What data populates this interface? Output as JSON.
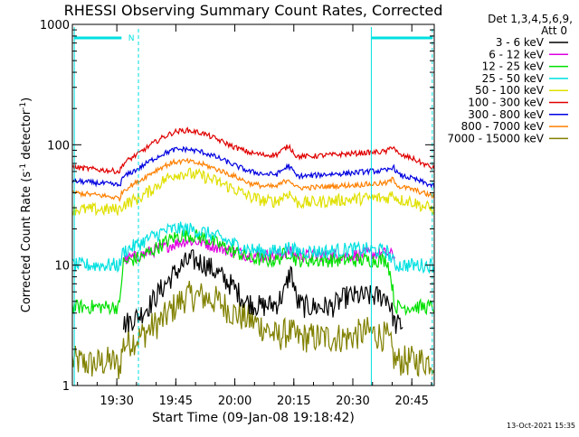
{
  "chart_data": {
    "type": "line",
    "title": "RHESSI Observing Summary Count Rates, Corrected",
    "xlabel": "Start Time (09-Jan-08 19:18:42)",
    "ylabel_main": "Corrected Count Rate (s",
    "ylabel_sup1": "-1",
    "ylabel_mid": " detector",
    "ylabel_sup2": "-1",
    "ylabel_end": ")",
    "y_scale": "log",
    "ylim": [
      1,
      1000
    ],
    "xlim_minutes": [
      0,
      92
    ],
    "x_ticks": [
      {
        "minute": 11.3,
        "label": "19:30"
      },
      {
        "minute": 26.3,
        "label": "19:45"
      },
      {
        "minute": 41.3,
        "label": "20:00"
      },
      {
        "minute": 56.3,
        "label": "20:15"
      },
      {
        "minute": 71.3,
        "label": "20:30"
      },
      {
        "minute": 86.3,
        "label": "20:45"
      }
    ],
    "y_ticks": [
      {
        "value": 1,
        "label": "1"
      },
      {
        "value": 10,
        "label": "10"
      },
      {
        "value": 100,
        "label": "100"
      },
      {
        "value": 1000,
        "label": "1000"
      }
    ],
    "legend_header": [
      "Det 1,3,4,5,6,9,",
      "Att 0"
    ],
    "legend_position": "right",
    "night_marker": "N",
    "timestamp": "13-Oct-2021 15:35",
    "series": [
      {
        "name": "3 - 6 keV",
        "color": "#000000",
        "x": [
          13,
          17,
          20,
          23,
          26,
          28,
          30,
          33,
          36,
          40,
          44,
          48,
          52,
          54,
          55.5,
          57,
          59,
          62,
          66,
          70,
          75,
          80,
          82,
          84
        ],
        "y": [
          3.2,
          3.8,
          4.8,
          6.5,
          8.5,
          10,
          11,
          10.5,
          9,
          7,
          5,
          4.5,
          4.8,
          6,
          9,
          5,
          4.5,
          4.5,
          4.5,
          5.5,
          5.5,
          5.5,
          3.2,
          3.2
        ]
      },
      {
        "name": "6 - 12 keV",
        "color": "#e000e0",
        "x": [
          13,
          17,
          20,
          23,
          26,
          29,
          33,
          37,
          41,
          45,
          49,
          52,
          55,
          57,
          60,
          65,
          70,
          75,
          80,
          82
        ],
        "y": [
          11,
          12,
          13,
          14,
          15,
          16,
          15.5,
          14,
          13,
          12,
          12,
          12,
          13,
          12,
          12,
          12,
          12,
          12.5,
          12.5,
          12
        ]
      },
      {
        "name": "12 - 25 keV",
        "color": "#00e000",
        "x": [
          0,
          7,
          12,
          13,
          17,
          20,
          23,
          26,
          29,
          33,
          37,
          41,
          45,
          49,
          52,
          55,
          57,
          60,
          65,
          70,
          75,
          80,
          82,
          88,
          92
        ],
        "y": [
          4.5,
          4.5,
          4.5,
          10.5,
          11.5,
          13,
          15,
          17,
          18,
          17,
          15,
          13,
          11.5,
          11,
          11,
          13,
          11,
          11,
          11,
          11,
          11,
          11,
          4.5,
          4.5,
          4.5
        ]
      },
      {
        "name": "25 - 50 keV",
        "color": "#00e0e0",
        "x": [
          0,
          7,
          12,
          13,
          17,
          20,
          23,
          26,
          29,
          33,
          37,
          41,
          45,
          49,
          52,
          55,
          57,
          60,
          65,
          70,
          75,
          80,
          82,
          88,
          92
        ],
        "y": [
          10,
          10,
          10,
          13,
          15,
          17,
          19,
          20,
          20,
          19,
          17,
          15,
          13.5,
          13,
          13,
          14,
          13,
          13,
          13,
          13.5,
          13.5,
          13,
          10,
          10,
          10
        ]
      },
      {
        "name": "50 - 100 keV",
        "color": "#e0e000",
        "x": [
          0,
          7,
          12,
          13,
          17,
          20,
          23,
          26,
          29,
          33,
          37,
          41,
          45,
          49,
          52,
          55,
          57,
          60,
          65,
          70,
          75,
          80,
          81.5,
          83,
          86,
          89,
          92
        ],
        "y": [
          29,
          29,
          29,
          32,
          36,
          42,
          50,
          57,
          58,
          55,
          49,
          43,
          37,
          34,
          34,
          40,
          33,
          33,
          34,
          35,
          36,
          36,
          39,
          35,
          34,
          31,
          29
        ]
      },
      {
        "name": "100 - 300 keV",
        "color": "#e00000",
        "x": [
          0,
          7,
          12,
          13,
          17,
          20,
          23,
          26,
          29,
          33,
          37,
          41,
          45,
          49,
          52,
          55,
          57,
          60,
          65,
          70,
          75,
          80,
          81.5,
          83,
          86,
          89,
          92
        ],
        "y": [
          65,
          62,
          60,
          70,
          85,
          100,
          115,
          128,
          132,
          125,
          110,
          96,
          86,
          82,
          83,
          98,
          80,
          80,
          82,
          84,
          86,
          88,
          98,
          82,
          78,
          70,
          63
        ]
      },
      {
        "name": "300 - 800 keV",
        "color": "#0000e0",
        "x": [
          0,
          7,
          12,
          13,
          17,
          20,
          23,
          26,
          29,
          33,
          37,
          41,
          45,
          49,
          52,
          55,
          57,
          60,
          65,
          70,
          75,
          80,
          81.5,
          83,
          86,
          89,
          92
        ],
        "y": [
          50,
          48,
          46,
          54,
          64,
          74,
          84,
          91,
          92,
          87,
          78,
          68,
          60,
          57,
          57,
          67,
          55,
          55,
          57,
          58,
          60,
          61,
          66,
          56,
          53,
          49,
          45
        ]
      },
      {
        "name": "800 - 7000 keV",
        "color": "#ff8000",
        "x": [
          0,
          7,
          12,
          13,
          17,
          20,
          23,
          26,
          29,
          33,
          37,
          41,
          45,
          49,
          52,
          55,
          57,
          60,
          65,
          70,
          75,
          80,
          81.5,
          83,
          86,
          89,
          92
        ],
        "y": [
          40,
          38,
          36,
          42,
          50,
          58,
          66,
          72,
          73,
          69,
          62,
          55,
          48,
          45,
          45,
          52,
          44,
          44,
          45,
          46,
          47,
          48,
          52,
          45,
          43,
          40,
          37
        ]
      },
      {
        "name": "7000 - 15000 keV",
        "color": "#808000",
        "x": [
          0,
          5,
          10,
          12,
          13,
          17,
          20,
          23,
          26,
          29,
          33,
          37,
          41,
          45,
          49,
          52,
          55,
          57,
          60,
          65,
          70,
          75,
          80,
          82,
          85,
          88,
          92
        ],
        "y": [
          1.6,
          1.5,
          1.6,
          1.4,
          2.2,
          2.5,
          3,
          3.5,
          4.5,
          5.5,
          5.5,
          5,
          4,
          3.5,
          3,
          2.5,
          2.8,
          2.5,
          2.5,
          2.5,
          2.5,
          2.8,
          2.5,
          1.6,
          1.6,
          1.6,
          1.6
        ]
      }
    ]
  }
}
